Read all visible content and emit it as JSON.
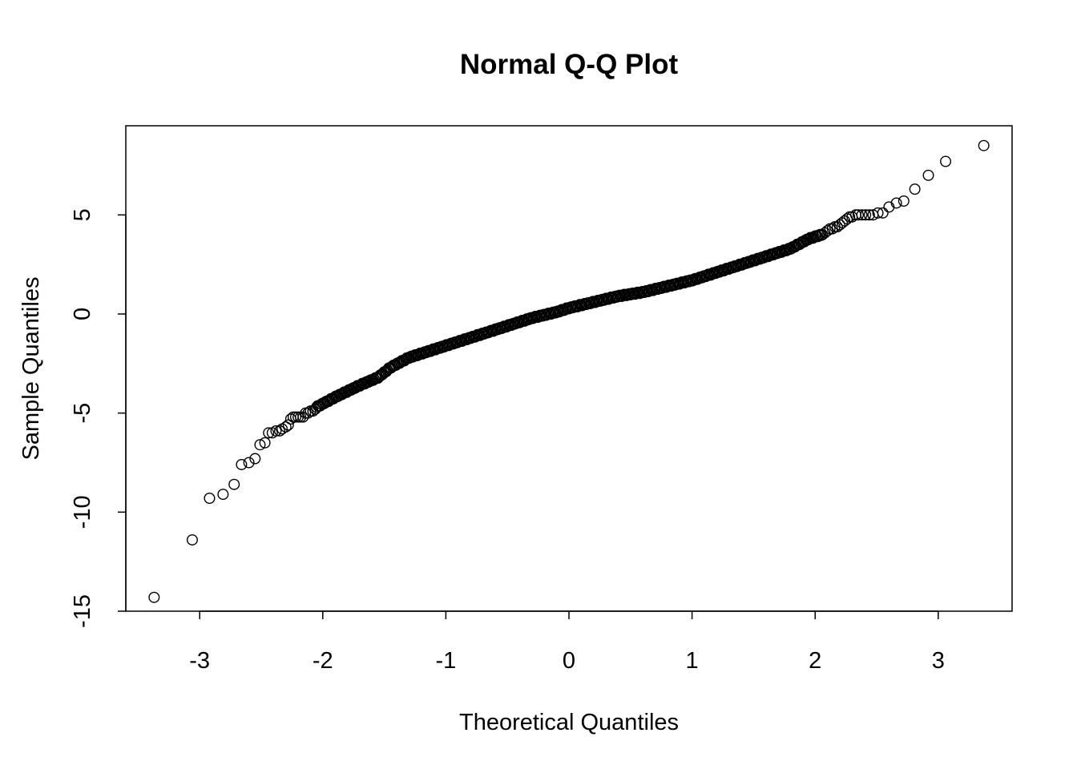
{
  "chart_data": {
    "type": "scatter",
    "title": "Normal Q-Q Plot",
    "xlabel": "Theoretical Quantiles",
    "ylabel": "Sample Quantiles",
    "xlim": [
      -3.6,
      3.6
    ],
    "ylim": [
      -15,
      9.5
    ],
    "xticks": [
      -3,
      -2,
      -1,
      0,
      1,
      2,
      3
    ],
    "yticks": [
      -15,
      -10,
      -5,
      0,
      5
    ],
    "grid": false,
    "marker": "open-circle",
    "n_points": 2500,
    "points": [
      [
        -3.37,
        -14.3
      ],
      [
        -3.06,
        -11.4
      ],
      [
        -2.92,
        -9.3
      ],
      [
        -2.81,
        -9.1
      ],
      [
        -2.72,
        -8.6
      ],
      [
        -2.66,
        -7.6
      ],
      [
        -2.6,
        -7.5
      ],
      [
        -2.55,
        -7.3
      ],
      [
        -2.51,
        -6.6
      ],
      [
        -2.47,
        -6.5
      ],
      [
        -2.44,
        -6.0
      ],
      [
        -2.41,
        -6.0
      ],
      [
        -2.38,
        -5.9
      ],
      [
        -2.35,
        -5.9
      ],
      [
        -2.33,
        -5.8
      ],
      [
        -2.3,
        -5.7
      ],
      [
        -2.28,
        -5.6
      ],
      [
        -2.26,
        -5.3
      ],
      [
        -2.24,
        -5.2
      ],
      [
        -2.22,
        -5.2
      ],
      [
        -2.2,
        -5.2
      ],
      [
        -2.18,
        -5.2
      ],
      [
        -2.16,
        -5.2
      ],
      [
        -2.14,
        -5.0
      ],
      [
        -2.12,
        -5.0
      ],
      [
        -2.1,
        -4.9
      ],
      [
        -2.08,
        -4.9
      ],
      [
        -2.06,
        -4.8
      ],
      [
        2.06,
        4.0
      ],
      [
        2.08,
        4.1
      ],
      [
        2.1,
        4.2
      ],
      [
        2.12,
        4.3
      ],
      [
        2.14,
        4.3
      ],
      [
        2.16,
        4.4
      ],
      [
        2.18,
        4.4
      ],
      [
        2.2,
        4.5
      ],
      [
        2.22,
        4.6
      ],
      [
        2.24,
        4.7
      ],
      [
        2.26,
        4.8
      ],
      [
        2.28,
        4.9
      ],
      [
        2.3,
        4.9
      ],
      [
        2.33,
        5.0
      ],
      [
        2.35,
        5.0
      ],
      [
        2.38,
        5.0
      ],
      [
        2.41,
        5.0
      ],
      [
        2.44,
        5.0
      ],
      [
        2.47,
        5.0
      ],
      [
        2.51,
        5.1
      ],
      [
        2.55,
        5.1
      ],
      [
        2.6,
        5.4
      ],
      [
        2.66,
        5.6
      ],
      [
        2.72,
        5.7
      ],
      [
        2.81,
        6.3
      ],
      [
        2.92,
        7.0
      ],
      [
        3.06,
        7.7
      ],
      [
        3.37,
        8.5
      ]
    ],
    "body_curve": [
      [
        -2.05,
        -4.7
      ],
      [
        -1.9,
        -4.2
      ],
      [
        -1.7,
        -3.6
      ],
      [
        -1.55,
        -3.2
      ],
      [
        -1.45,
        -2.7
      ],
      [
        -1.3,
        -2.2
      ],
      [
        -1.1,
        -1.8
      ],
      [
        -0.9,
        -1.4
      ],
      [
        -0.7,
        -1.0
      ],
      [
        -0.5,
        -0.6
      ],
      [
        -0.3,
        -0.2
      ],
      [
        -0.1,
        0.1
      ],
      [
        0.0,
        0.3
      ],
      [
        0.2,
        0.6
      ],
      [
        0.4,
        0.9
      ],
      [
        0.6,
        1.1
      ],
      [
        0.8,
        1.4
      ],
      [
        1.0,
        1.7
      ],
      [
        1.2,
        2.1
      ],
      [
        1.4,
        2.5
      ],
      [
        1.6,
        2.9
      ],
      [
        1.8,
        3.3
      ],
      [
        1.95,
        3.8
      ],
      [
        2.05,
        4.0
      ]
    ]
  }
}
